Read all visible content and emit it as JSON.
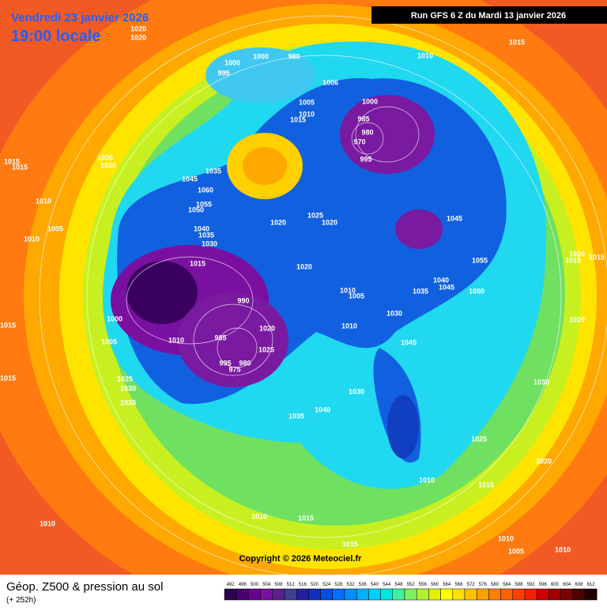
{
  "header": {
    "date_line": "Vendredi 23 janvier 2026",
    "time_line": "19:00 locale"
  },
  "run_info": "Run GFS 6 Z du Mardi 13 janvier 2026",
  "copyright": "Copyright © 2026 Meteociel.fr",
  "footer": {
    "title": "Géop. Z500 & pression au sol",
    "subtitle": "(+ 252h)"
  },
  "legend": {
    "values": [
      492,
      496,
      500,
      504,
      508,
      512,
      516,
      520,
      524,
      528,
      532,
      536,
      540,
      544,
      548,
      552,
      556,
      560,
      564,
      568,
      572,
      576,
      580,
      584,
      588,
      592,
      596,
      600,
      604,
      608,
      612
    ],
    "colors": [
      "#2b0050",
      "#4b0070",
      "#6a0090",
      "#7a10a0",
      "#5a2090",
      "#404090",
      "#2020a0",
      "#1030c0",
      "#0050e0",
      "#0070ff",
      "#0090ff",
      "#00b0ff",
      "#00d0ff",
      "#00e8e0",
      "#40f0a0",
      "#80f060",
      "#b0f030",
      "#e0f000",
      "#ffff00",
      "#ffe000",
      "#ffc000",
      "#ffa000",
      "#ff8000",
      "#ff6000",
      "#ff4000",
      "#f02000",
      "#d00000",
      "#a00000",
      "#800000",
      "#500000",
      "#200000"
    ]
  },
  "isobar_labels": [
    "1020",
    "1020",
    "1000",
    "995",
    "1000",
    "980",
    "1010",
    "1015",
    "1006",
    "1005",
    "1015",
    "1010",
    "1000",
    "985",
    "980",
    "970",
    "995",
    "1015",
    "1015",
    "1030",
    "1030",
    "1035",
    "1045",
    "1060",
    "1055",
    "1050",
    "1040",
    "1035",
    "1030",
    "1020",
    "1025",
    "1020",
    "1045",
    "1055",
    "1015",
    "1020",
    "1005",
    "1010",
    "1010",
    "990",
    "1010",
    "1005",
    "1035",
    "1040",
    "1045",
    "1050",
    "1030",
    "1010",
    "1045",
    "1000",
    "1005",
    "1010",
    "985",
    "1020",
    "1025",
    "980",
    "995",
    "975",
    "1020",
    "1015",
    "1015",
    "1020",
    "1025",
    "1030",
    "1035",
    "1030",
    "1040",
    "1035",
    "1015",
    "1015",
    "1030",
    "1025",
    "1020",
    "1010",
    "1015",
    "1010",
    "1015",
    "1010",
    "1015",
    "1010",
    "1005",
    "1010"
  ]
}
